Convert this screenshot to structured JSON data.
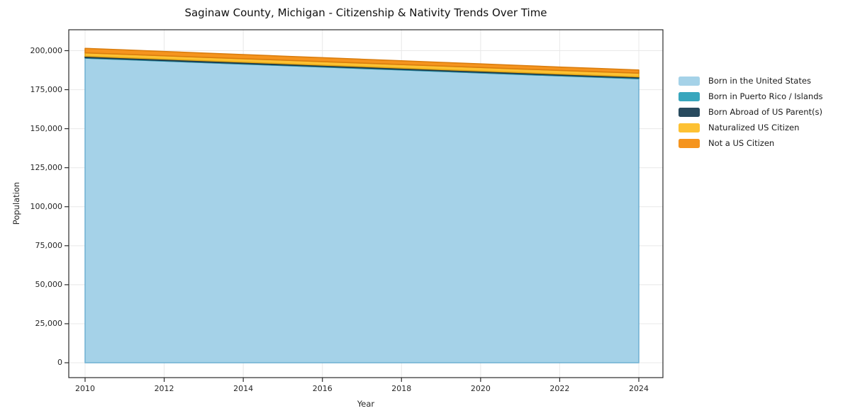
{
  "chart_data": {
    "type": "area",
    "stacked": true,
    "title": "Saginaw County, Michigan - Citizenship & Nativity Trends Over Time",
    "xlabel": "Year",
    "ylabel": "Population",
    "grid": true,
    "legend_position": "right-outside",
    "xlim": [
      2009.3,
      2024.7
    ],
    "ylim": [
      0,
      212000
    ],
    "x": [
      2010,
      2011,
      2012,
      2013,
      2014,
      2015,
      2016,
      2017,
      2018,
      2019,
      2020,
      2021,
      2022,
      2023,
      2024
    ],
    "series": [
      {
        "name": "Born in the United States",
        "color": "#a5d2e8",
        "edge_color": "#6fb0d2",
        "values": [
          195200,
          194250,
          193300,
          192350,
          191400,
          190450,
          189500,
          188550,
          187600,
          186650,
          185700,
          184750,
          183800,
          182900,
          182000
        ]
      },
      {
        "name": "Born in Puerto Rico / Islands",
        "color": "#38a6bd",
        "edge_color": "#2b8da1",
        "values": [
          380,
          390,
          400,
          400,
          410,
          420,
          430,
          440,
          450,
          460,
          470,
          470,
          480,
          490,
          500
        ]
      },
      {
        "name": "Born Abroad of US Parent(s)",
        "color": "#284a5e",
        "edge_color": "#1c3747",
        "values": [
          850,
          840,
          830,
          820,
          810,
          800,
          790,
          780,
          770,
          760,
          750,
          740,
          730,
          720,
          710
        ]
      },
      {
        "name": "Naturalized US Citizen",
        "color": "#fdc133",
        "edge_color": "#e0a512",
        "values": [
          2150,
          2170,
          2190,
          2200,
          2220,
          2240,
          2250,
          2260,
          2280,
          2290,
          2300,
          2310,
          2330,
          2340,
          2350
        ]
      },
      {
        "name": "Not a US Citizen",
        "color": "#f5941e",
        "edge_color": "#d97c0d",
        "values": [
          2900,
          2840,
          2780,
          2720,
          2660,
          2600,
          2540,
          2480,
          2420,
          2360,
          2300,
          2240,
          2180,
          2120,
          2060
        ]
      }
    ],
    "xticks": [
      {
        "value": 2010,
        "label": "2010"
      },
      {
        "value": 2012,
        "label": "2012"
      },
      {
        "value": 2014,
        "label": "2014"
      },
      {
        "value": 2016,
        "label": "2016"
      },
      {
        "value": 2018,
        "label": "2018"
      },
      {
        "value": 2020,
        "label": "2020"
      },
      {
        "value": 2022,
        "label": "2022"
      },
      {
        "value": 2024,
        "label": "2024"
      }
    ],
    "yticks": [
      {
        "value": 0,
        "label": "0"
      },
      {
        "value": 25000,
        "label": "25,000"
      },
      {
        "value": 50000,
        "label": "50,000"
      },
      {
        "value": 75000,
        "label": "75,000"
      },
      {
        "value": 100000,
        "label": "100,000"
      },
      {
        "value": 125000,
        "label": "125,000"
      },
      {
        "value": 150000,
        "label": "150,000"
      },
      {
        "value": 175000,
        "label": "175,000"
      },
      {
        "value": 200000,
        "label": "200,000"
      }
    ]
  },
  "style_colors": {
    "grid": "#e8e8e8",
    "spine": "#2b2b2b",
    "tick_text": "#262626"
  }
}
